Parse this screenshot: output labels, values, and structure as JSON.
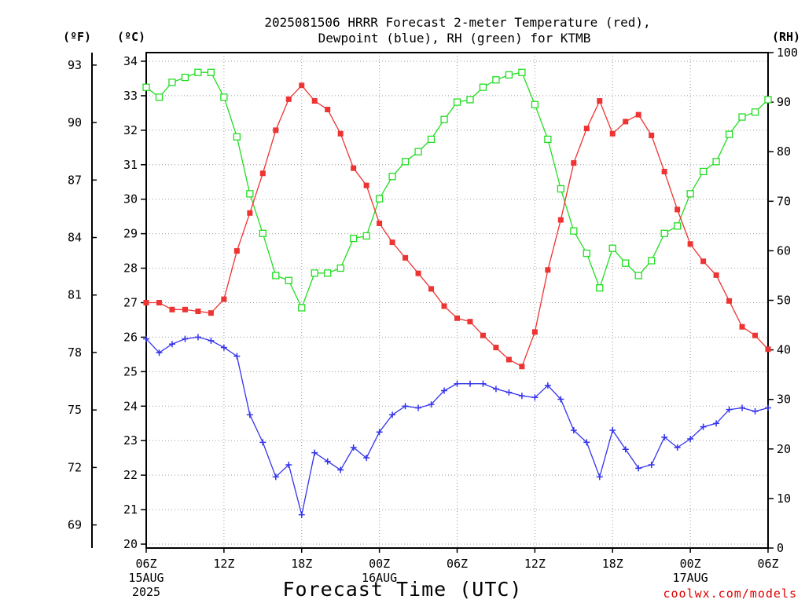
{
  "chart_data": {
    "type": "line",
    "title": [
      "2025081506 HRRR Forecast 2-meter Temperature (red),",
      "Dewpoint (blue), RH (green) for KTMB"
    ],
    "units": {
      "fahrenheit": "(ºF)",
      "celsius": "(ºC)",
      "rh": "(RH)"
    },
    "xlabel": "Forecast Time (UTC)",
    "credit": "coolwx.com/models",
    "x_tick_labels": [
      {
        "hour": 0,
        "lines": [
          "06Z",
          "15AUG",
          "2025"
        ]
      },
      {
        "hour": 6,
        "lines": [
          "12Z"
        ]
      },
      {
        "hour": 12,
        "lines": [
          "18Z"
        ]
      },
      {
        "hour": 18,
        "lines": [
          "00Z",
          "16AUG"
        ]
      },
      {
        "hour": 24,
        "lines": [
          "06Z"
        ]
      },
      {
        "hour": 30,
        "lines": [
          "12Z"
        ]
      },
      {
        "hour": 36,
        "lines": [
          "18Z"
        ]
      },
      {
        "hour": 42,
        "lines": [
          "00Z",
          "17AUG"
        ]
      },
      {
        "hour": 48,
        "lines": [
          "06Z"
        ]
      }
    ],
    "xlim": [
      0,
      48
    ],
    "y_celsius": {
      "ylim": [
        20,
        34
      ],
      "ticks": [
        20,
        21,
        22,
        23,
        24,
        25,
        26,
        27,
        28,
        29,
        30,
        31,
        32,
        33,
        34
      ]
    },
    "y_fahrenheit": {
      "ticks": [
        69,
        72,
        75,
        78,
        81,
        84,
        87,
        90,
        93
      ]
    },
    "y_rh": {
      "ylim": [
        0,
        100
      ],
      "ticks": [
        0,
        10,
        20,
        30,
        40,
        50,
        60,
        70,
        80,
        90,
        100
      ]
    },
    "grid": true,
    "series": [
      {
        "name": "Temperature",
        "color": "#ee3333",
        "marker": "filled-square",
        "axis": "celsius",
        "values": [
          27.0,
          27.0,
          26.8,
          26.8,
          26.75,
          26.7,
          27.1,
          28.5,
          29.6,
          30.75,
          32.0,
          32.9,
          33.3,
          32.85,
          32.6,
          31.9,
          30.9,
          30.4,
          29.3,
          28.75,
          28.3,
          27.85,
          27.4,
          26.9,
          26.55,
          26.45,
          26.05,
          25.7,
          25.35,
          25.15,
          26.15,
          27.95,
          29.4,
          31.05,
          32.05,
          32.85,
          31.9,
          32.25,
          32.45,
          31.85,
          30.8,
          29.7,
          28.7,
          28.2,
          27.8,
          27.05,
          26.3,
          26.05,
          25.65
        ]
      },
      {
        "name": "Dewpoint",
        "color": "#3333ee",
        "marker": "plus",
        "axis": "celsius",
        "values": [
          25.95,
          25.55,
          25.8,
          25.95,
          26.0,
          25.9,
          25.7,
          25.45,
          23.75,
          22.95,
          21.95,
          22.3,
          20.85,
          22.65,
          22.4,
          22.15,
          22.8,
          22.5,
          23.25,
          23.75,
          24.0,
          23.95,
          24.05,
          24.45,
          24.65,
          24.65,
          24.65,
          24.5,
          24.4,
          24.3,
          24.25,
          24.6,
          24.2,
          23.3,
          22.95,
          21.95,
          23.3,
          22.75,
          22.2,
          22.3,
          23.1,
          22.8,
          23.05,
          23.4,
          23.5,
          23.9,
          23.95,
          23.85,
          23.95
        ]
      },
      {
        "name": "RH",
        "color": "#22dd22",
        "marker": "open-square",
        "axis": "rh",
        "values": [
          93.0,
          91.0,
          94.0,
          95.0,
          96.0,
          96.0,
          91.0,
          83.0,
          71.5,
          63.5,
          55.0,
          54.0,
          48.5,
          55.5,
          55.5,
          56.5,
          62.5,
          63.0,
          70.5,
          75.0,
          78.0,
          80.0,
          82.5,
          86.5,
          90.0,
          90.5,
          93.0,
          94.5,
          95.5,
          96.0,
          89.5,
          82.5,
          72.5,
          64.0,
          59.5,
          52.5,
          60.5,
          57.5,
          55.0,
          58.0,
          63.5,
          65.0,
          71.5,
          76.0,
          78.0,
          83.5,
          87.0,
          88.0,
          90.5
        ]
      }
    ]
  }
}
